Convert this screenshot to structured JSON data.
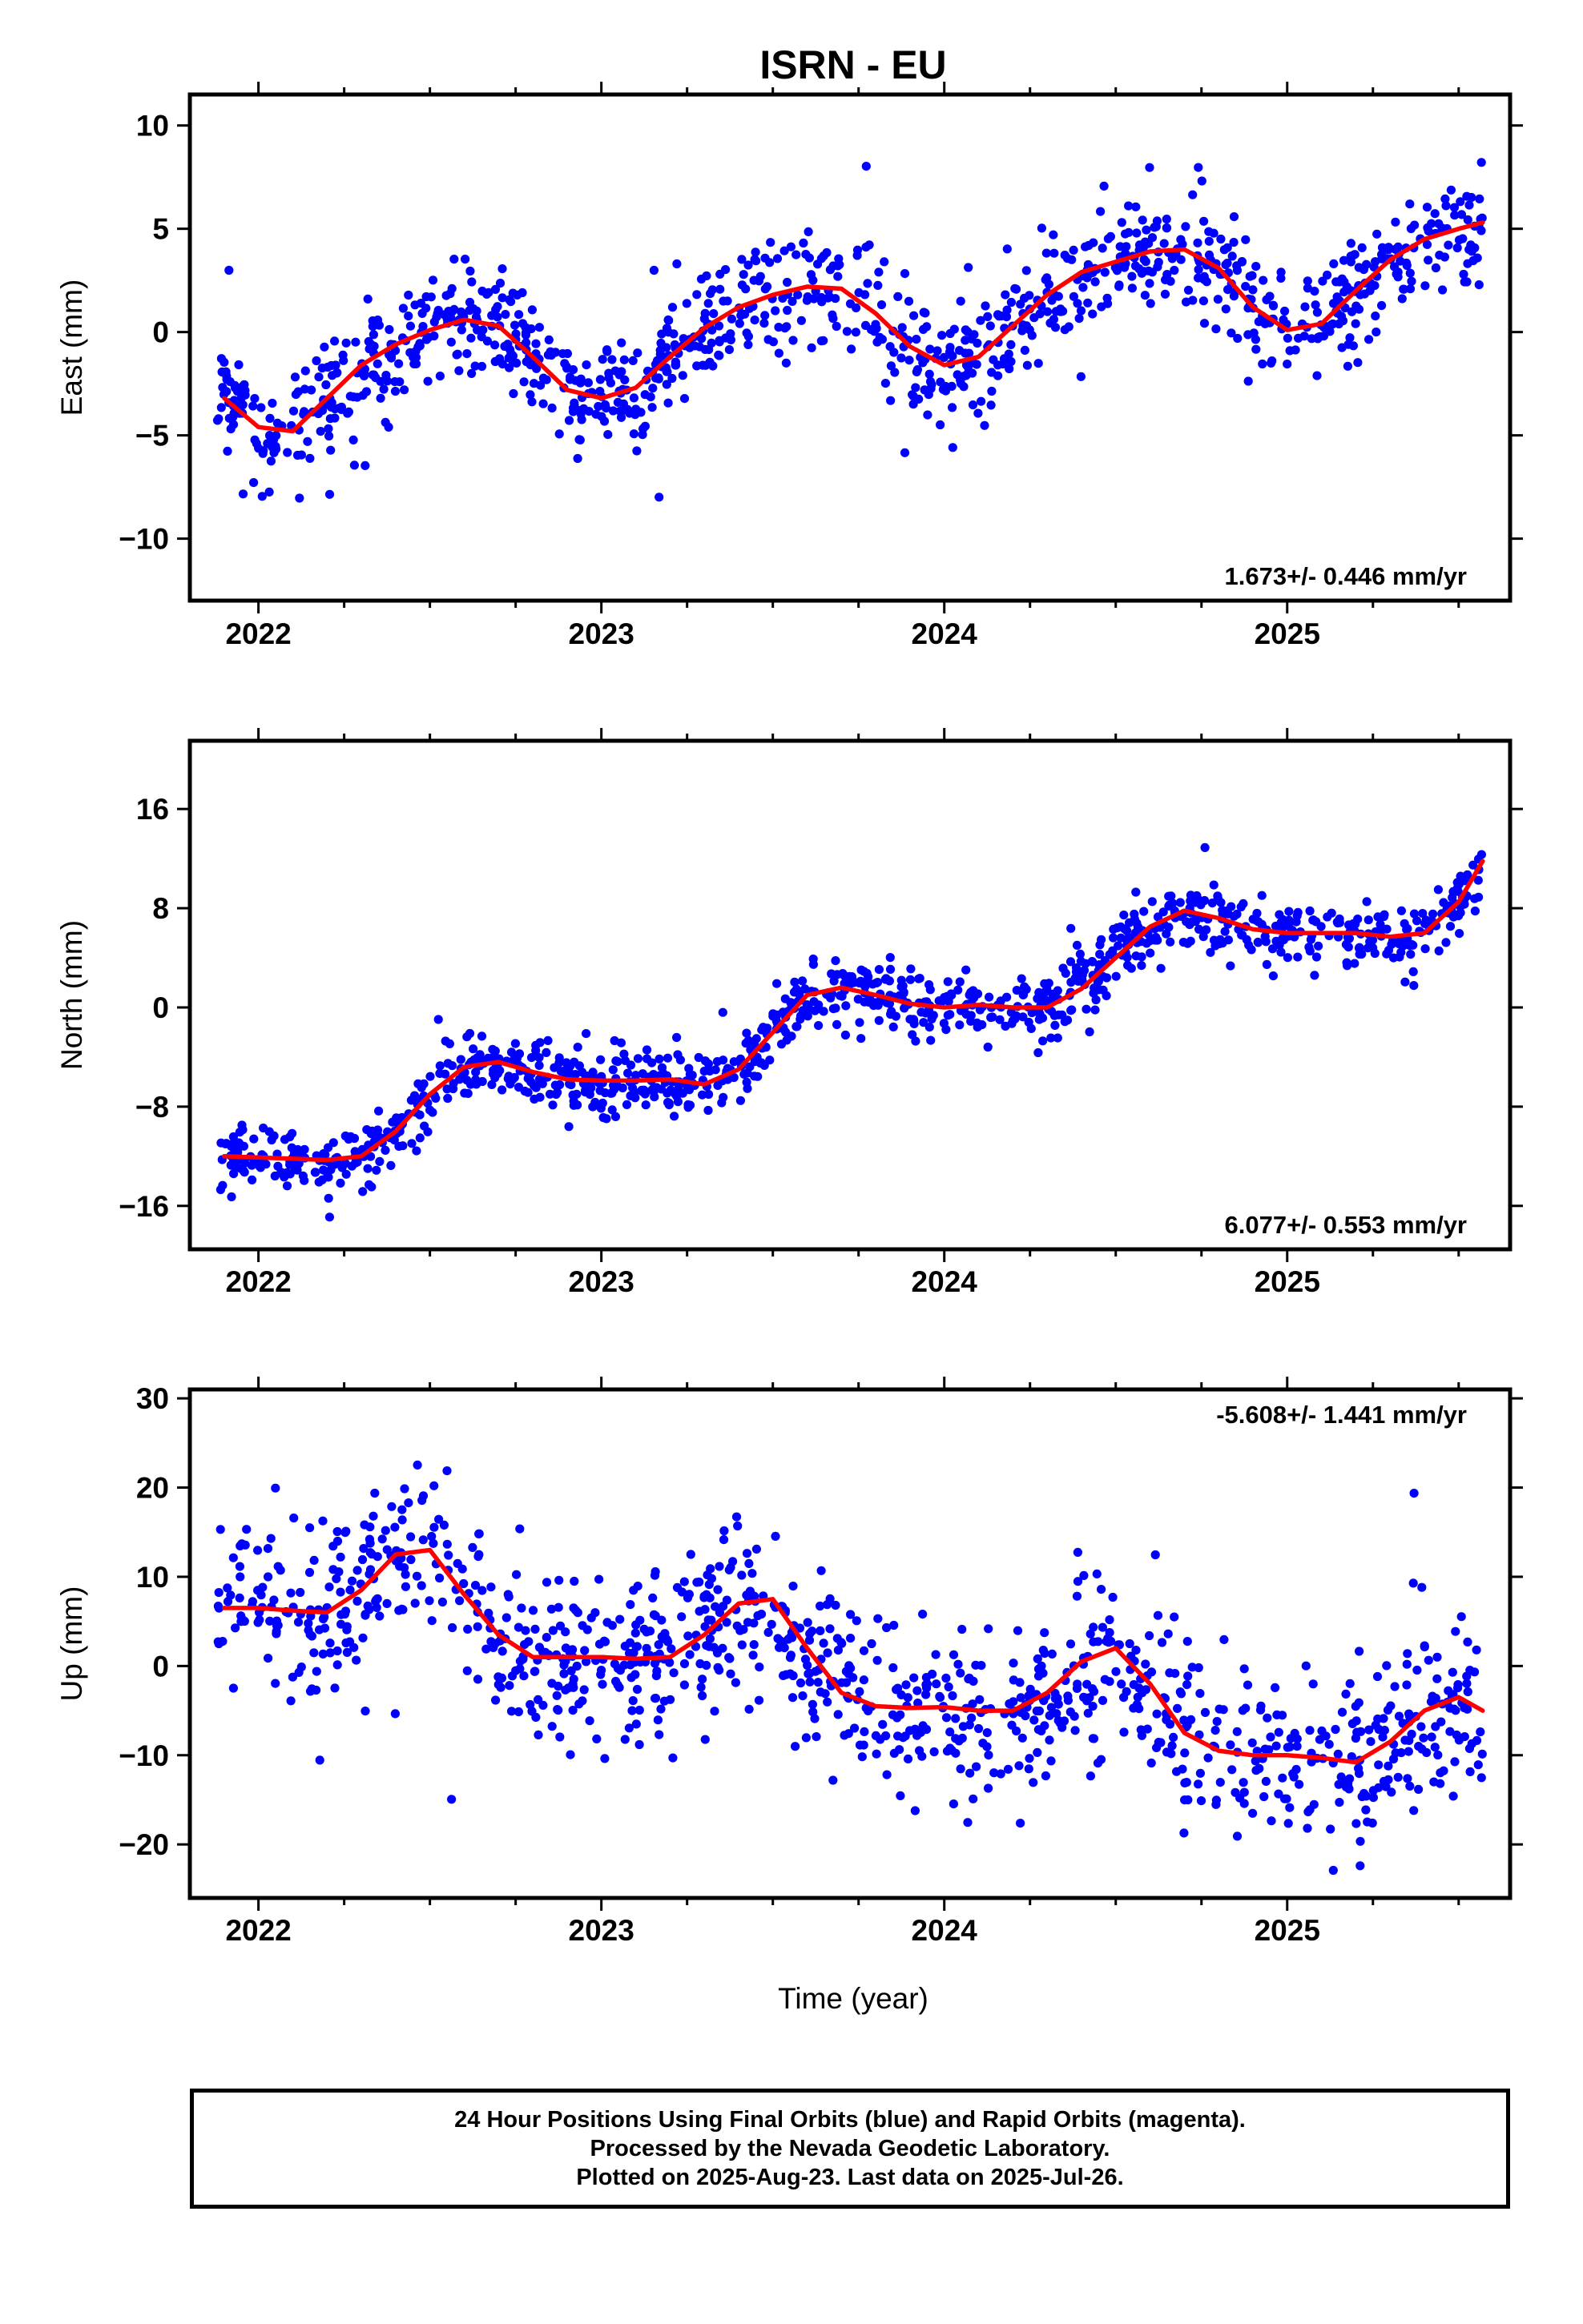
{
  "title": "ISRN - EU",
  "chart_data": [
    {
      "type": "scatter",
      "name": "east",
      "ylabel": "East (mm)",
      "xlabel": "",
      "xlim": [
        2021.8,
        2025.65
      ],
      "ylim": [
        -13,
        11.5
      ],
      "yticks": [
        -10,
        -5,
        0,
        5,
        10
      ],
      "xticks": [
        2022,
        2023,
        2024,
        2025
      ],
      "rate_text": "1.673+/- 0.446 mm/yr",
      "rate_position": "bottom-right",
      "grid": false,
      "point_color": "#0000ff",
      "model_color": "#ff0000",
      "model": {
        "x": [
          2021.9,
          2022.0,
          2022.1,
          2022.2,
          2022.3,
          2022.4,
          2022.5,
          2022.6,
          2022.7,
          2022.8,
          2022.9,
          2023.0,
          2023.1,
          2023.2,
          2023.3,
          2023.4,
          2023.5,
          2023.6,
          2023.7,
          2023.8,
          2023.9,
          2024.0,
          2024.1,
          2024.2,
          2024.3,
          2024.4,
          2024.5,
          2024.6,
          2024.7,
          2024.8,
          2024.9,
          2025.0,
          2025.1,
          2025.2,
          2025.3,
          2025.4,
          2025.5,
          2025.57
        ],
        "y": [
          -3.2,
          -4.6,
          -4.8,
          -3.2,
          -1.6,
          -0.6,
          0.1,
          0.6,
          0.3,
          -1.2,
          -2.8,
          -3.2,
          -2.7,
          -1.2,
          0.2,
          1.2,
          1.8,
          2.2,
          2.1,
          0.9,
          -0.7,
          -1.6,
          -1.2,
          0.3,
          1.8,
          2.9,
          3.4,
          3.9,
          4.0,
          3.1,
          1.2,
          0.1,
          0.4,
          2.0,
          3.5,
          4.5,
          5.0,
          5.3
        ]
      },
      "points": {
        "x_start": 2021.88,
        "x_end": 2025.57,
        "count": 1100,
        "scatter_sd_mm": 1.4
      }
    },
    {
      "type": "scatter",
      "name": "north",
      "ylabel": "North (mm)",
      "xlabel": "",
      "xlim": [
        2021.8,
        2025.65
      ],
      "ylim": [
        -19.5,
        21.5
      ],
      "yticks": [
        -16,
        -8,
        0,
        8,
        16
      ],
      "xticks": [
        2022,
        2023,
        2024,
        2025
      ],
      "rate_text": "6.077+/- 0.553 mm/yr",
      "rate_position": "bottom-right",
      "grid": false,
      "point_color": "#0000ff",
      "model_color": "#ff0000",
      "model": {
        "x": [
          2021.9,
          2022.0,
          2022.1,
          2022.2,
          2022.3,
          2022.4,
          2022.5,
          2022.6,
          2022.7,
          2022.8,
          2022.9,
          2023.0,
          2023.1,
          2023.2,
          2023.3,
          2023.4,
          2023.5,
          2023.6,
          2023.7,
          2023.8,
          2023.9,
          2024.0,
          2024.1,
          2024.2,
          2024.3,
          2024.4,
          2024.5,
          2024.6,
          2024.7,
          2024.8,
          2024.9,
          2025.0,
          2025.1,
          2025.2,
          2025.3,
          2025.4,
          2025.5,
          2025.57
        ],
        "y": [
          -12.0,
          -12.1,
          -12.2,
          -12.3,
          -12.0,
          -10.0,
          -7.0,
          -4.8,
          -4.4,
          -5.2,
          -5.8,
          -5.9,
          -5.9,
          -5.8,
          -6.2,
          -5.0,
          -2.0,
          1.0,
          1.6,
          1.0,
          0.3,
          0.0,
          0.2,
          0.0,
          0.0,
          1.5,
          4.0,
          6.5,
          7.8,
          7.2,
          6.3,
          6.0,
          6.0,
          6.0,
          5.7,
          6.0,
          8.5,
          11.8
        ]
      },
      "points": {
        "x_start": 2021.88,
        "x_end": 2025.57,
        "count": 1100,
        "scatter_sd_mm": 1.3
      }
    },
    {
      "type": "scatter",
      "name": "up",
      "ylabel": "Up (mm)",
      "xlabel": "Time (year)",
      "xlim": [
        2021.8,
        2025.65
      ],
      "ylim": [
        -26,
        31
      ],
      "yticks": [
        -20,
        -10,
        0,
        10,
        20,
        30
      ],
      "xticks": [
        2022,
        2023,
        2024,
        2025
      ],
      "rate_text": "-5.608+/- 1.441 mm/yr",
      "rate_position": "top-right",
      "grid": false,
      "point_color": "#0000ff",
      "model_color": "#ff0000",
      "model": {
        "x": [
          2021.9,
          2022.0,
          2022.1,
          2022.2,
          2022.3,
          2022.4,
          2022.5,
          2022.6,
          2022.7,
          2022.8,
          2022.9,
          2023.0,
          2023.1,
          2023.2,
          2023.3,
          2023.4,
          2023.5,
          2023.6,
          2023.7,
          2023.8,
          2023.9,
          2024.0,
          2024.1,
          2024.2,
          2024.3,
          2024.4,
          2024.5,
          2024.6,
          2024.7,
          2024.8,
          2024.9,
          2025.0,
          2025.1,
          2025.2,
          2025.3,
          2025.4,
          2025.5,
          2025.57
        ],
        "y": [
          6.5,
          6.5,
          6.2,
          6.0,
          8.5,
          12.5,
          13.0,
          8.0,
          3.5,
          1.0,
          1.0,
          1.0,
          0.8,
          1.0,
          3.5,
          7.0,
          7.5,
          2.0,
          -3.0,
          -4.5,
          -4.7,
          -4.6,
          -5.0,
          -5.0,
          -3.0,
          0.5,
          2.0,
          -2.0,
          -7.5,
          -9.5,
          -10.0,
          -10.0,
          -10.3,
          -10.8,
          -8.5,
          -5.0,
          -3.5,
          -5.0
        ]
      },
      "points": {
        "x_start": 2021.88,
        "x_end": 2025.57,
        "count": 1100,
        "scatter_sd_mm": 4.8
      }
    }
  ],
  "footer": {
    "line1": "24 Hour Positions Using Final Orbits (blue) and Rapid Orbits (magenta).",
    "line2": "Processed by the Nevada Geodetic Laboratory.",
    "line3": "Plotted on 2025-Aug-23. Last data on 2025-Jul-26."
  }
}
